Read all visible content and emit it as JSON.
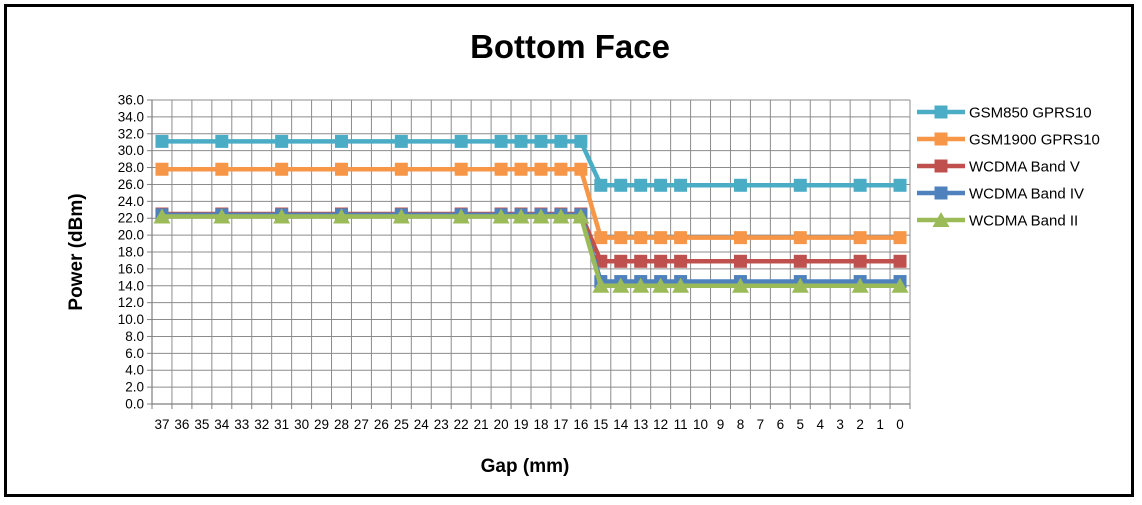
{
  "chart_data": {
    "type": "line",
    "title": "Bottom Face",
    "xlabel": "Gap (mm)",
    "ylabel": "Power (dBm)",
    "x_ticks": [
      "37",
      "36",
      "35",
      "34",
      "33",
      "32",
      "31",
      "30",
      "29",
      "28",
      "27",
      "26",
      "25",
      "24",
      "23",
      "22",
      "21",
      "20",
      "19",
      "18",
      "17",
      "16",
      "15",
      "14",
      "13",
      "12",
      "11",
      "10",
      "9",
      "8",
      "7",
      "6",
      "5",
      "4",
      "3",
      "2",
      "1",
      "0"
    ],
    "x_order": "descending",
    "y_ticks": [
      "0.0",
      "2.0",
      "4.0",
      "6.0",
      "8.0",
      "10.0",
      "12.0",
      "14.0",
      "16.0",
      "18.0",
      "20.0",
      "22.0",
      "24.0",
      "26.0",
      "28.0",
      "30.0",
      "32.0",
      "34.0",
      "36.0"
    ],
    "ylim": [
      0,
      36
    ],
    "grid": true,
    "legend_position": "right",
    "x": [
      37,
      34,
      31,
      28,
      25,
      22,
      20,
      19,
      18,
      17,
      16,
      15,
      14,
      13,
      12,
      11,
      8,
      5,
      2,
      0
    ],
    "series": [
      {
        "name": "GSM850 GPRS10",
        "color": "#4bacc6",
        "marker": "square",
        "values": [
          31.1,
          31.1,
          31.1,
          31.1,
          31.1,
          31.1,
          31.1,
          31.1,
          31.1,
          31.1,
          31.1,
          25.9,
          25.9,
          25.9,
          25.9,
          25.9,
          25.9,
          25.9,
          25.9,
          25.9
        ]
      },
      {
        "name": "GSM1900 GPRS10",
        "color": "#f79646",
        "marker": "square",
        "values": [
          27.8,
          27.8,
          27.8,
          27.8,
          27.8,
          27.8,
          27.8,
          27.8,
          27.8,
          27.8,
          27.8,
          19.7,
          19.7,
          19.7,
          19.7,
          19.7,
          19.7,
          19.7,
          19.7,
          19.7
        ]
      },
      {
        "name": "WCDMA Band V",
        "color": "#c0504d",
        "marker": "square",
        "values": [
          22.5,
          22.5,
          22.5,
          22.5,
          22.5,
          22.5,
          22.5,
          22.5,
          22.5,
          22.5,
          22.5,
          16.9,
          16.9,
          16.9,
          16.9,
          16.9,
          16.9,
          16.9,
          16.9,
          16.9
        ]
      },
      {
        "name": "WCDMA Band IV",
        "color": "#4f81bd",
        "marker": "square",
        "values": [
          22.4,
          22.4,
          22.4,
          22.4,
          22.4,
          22.4,
          22.4,
          22.4,
          22.4,
          22.4,
          22.4,
          14.5,
          14.5,
          14.5,
          14.5,
          14.5,
          14.5,
          14.5,
          14.5,
          14.5
        ]
      },
      {
        "name": "WCDMA Band II",
        "color": "#9bbb59",
        "marker": "triangle",
        "values": [
          22.2,
          22.2,
          22.2,
          22.2,
          22.2,
          22.2,
          22.2,
          22.2,
          22.2,
          22.2,
          22.2,
          14.0,
          14.0,
          14.0,
          14.0,
          14.0,
          14.0,
          14.0,
          14.0,
          14.0
        ]
      }
    ]
  }
}
